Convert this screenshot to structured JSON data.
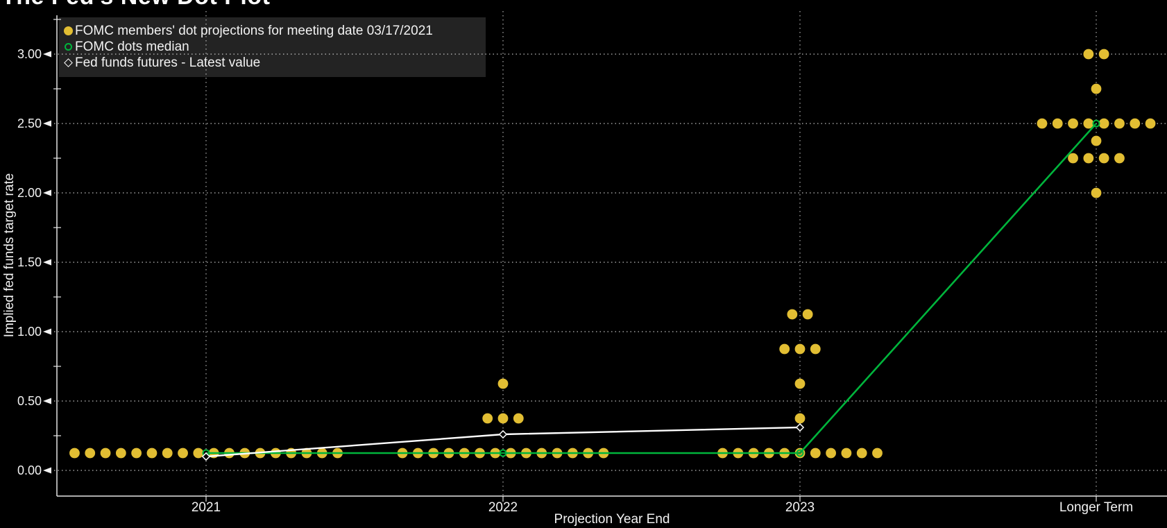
{
  "chart": {
    "title": "The Fed's New Dot Plot",
    "xlabel": "Projection Year End",
    "ylabel": "Implied fed funds target rate"
  },
  "legend": {
    "items": [
      {
        "marker": "yellow-dot",
        "label": "FOMC members' dot projections for meeting date 03/17/2021"
      },
      {
        "marker": "green-circle",
        "label": "FOMC dots median"
      },
      {
        "marker": "white-diamond",
        "label": "Fed funds futures - Latest value"
      }
    ]
  },
  "colors": {
    "background": "#000000",
    "dots": "#e2be33",
    "median": "#00b53c",
    "futures": "#ffffff",
    "axis": "#e6e6e6",
    "grid": "#ffffff",
    "text": "#f2f2f2",
    "legend_bg": "#232323"
  },
  "chart_data": {
    "type": "scatter",
    "title": "The Fed's New Dot Plot",
    "xlabel": "Projection Year End",
    "ylabel": "Implied fed funds target rate",
    "x_categories": [
      "2021",
      "2022",
      "2023",
      "Longer Term"
    ],
    "y_ticks": [
      0.0,
      0.5,
      1.0,
      1.5,
      2.0,
      2.5,
      3.0
    ],
    "y_tick_labels": [
      "0.00",
      "0.50",
      "1.00",
      "1.50",
      "2.00",
      "2.50",
      "3.00"
    ],
    "y_minor_ticks": [
      0.25,
      0.75,
      1.25,
      1.75,
      2.25,
      2.75,
      3.25
    ],
    "ylim": [
      -0.185,
      3.28
    ],
    "grid": true,
    "legend_position": "top-left",
    "series": [
      {
        "name": "FOMC members' dot projections for meeting date 03/17/2021",
        "type": "dot-cluster",
        "clusters": [
          {
            "category": "2021",
            "dots": [
              {
                "rate": 0.125,
                "count": 18
              }
            ]
          },
          {
            "category": "2022",
            "dots": [
              {
                "rate": 0.125,
                "count": 14
              },
              {
                "rate": 0.375,
                "count": 3
              },
              {
                "rate": 0.625,
                "count": 1
              }
            ]
          },
          {
            "category": "2023",
            "dots": [
              {
                "rate": 0.125,
                "count": 11
              },
              {
                "rate": 0.375,
                "count": 1
              },
              {
                "rate": 0.625,
                "count": 1
              },
              {
                "rate": 0.875,
                "count": 3
              },
              {
                "rate": 1.125,
                "count": 2
              }
            ]
          },
          {
            "category": "Longer Term",
            "dots": [
              {
                "rate": 2.0,
                "count": 1
              },
              {
                "rate": 2.25,
                "count": 4
              },
              {
                "rate": 2.375,
                "count": 1
              },
              {
                "rate": 2.5,
                "count": 8
              },
              {
                "rate": 2.75,
                "count": 1
              },
              {
                "rate": 3.0,
                "count": 2
              }
            ]
          }
        ]
      },
      {
        "name": "FOMC dots median",
        "type": "line",
        "x": [
          "2021",
          "2022",
          "2023",
          "Longer Term"
        ],
        "values": [
          0.125,
          0.125,
          0.125,
          2.5
        ]
      },
      {
        "name": "Fed funds futures - Latest value",
        "type": "line",
        "x": [
          "2021",
          "2022",
          "2023"
        ],
        "values": [
          0.1,
          0.26,
          0.31
        ]
      }
    ]
  }
}
